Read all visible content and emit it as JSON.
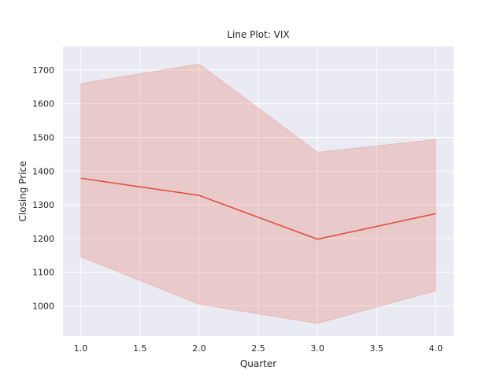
{
  "chart_data": {
    "type": "line",
    "title": "Line Plot: VIX",
    "xlabel": "Quarter",
    "ylabel": "Closing Price",
    "x": [
      1.0,
      2.0,
      3.0,
      4.0
    ],
    "series": [
      {
        "values": [
          1379,
          1328,
          1198,
          1274
        ],
        "ci_upper": [
          1660,
          1718,
          1456,
          1494
        ],
        "ci_lower": [
          1146,
          1005,
          948,
          1045
        ],
        "color": "#e24a33",
        "band_color": "#e24a33"
      }
    ],
    "xticks": [
      "1.0",
      "1.5",
      "2.0",
      "2.5",
      "3.0",
      "3.5",
      "4.0"
    ],
    "yticks": [
      "1000",
      "1100",
      "1200",
      "1300",
      "1400",
      "1500",
      "1600",
      "1700"
    ],
    "xlim": [
      0.85,
      4.15
    ],
    "ylim": [
      910,
      1770
    ],
    "grid": true,
    "background": "#eaeaf2"
  }
}
